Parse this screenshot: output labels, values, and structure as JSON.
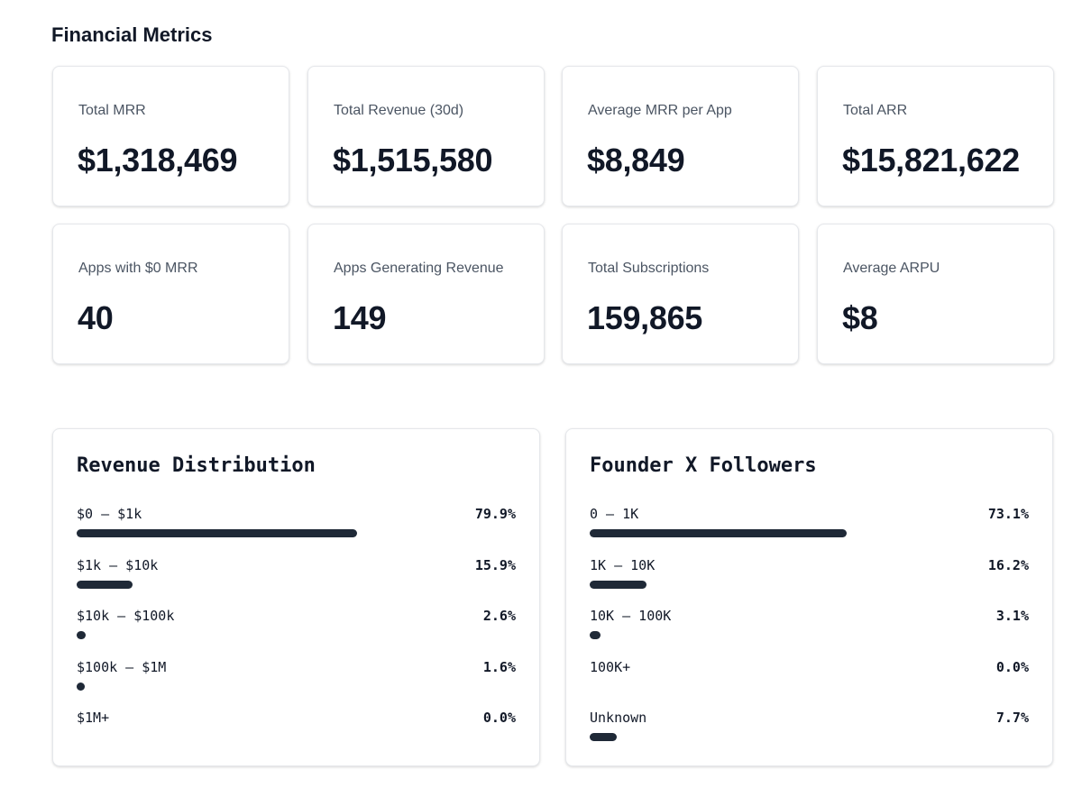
{
  "page": {
    "title": "Financial Metrics"
  },
  "metrics": [
    {
      "label": "Total MRR",
      "value": "$1,318,469"
    },
    {
      "label": "Total Revenue (30d)",
      "value": "$1,515,580"
    },
    {
      "label": "Average MRR per App",
      "value": "$8,849"
    },
    {
      "label": "Total ARR",
      "value": "$15,821,622"
    },
    {
      "label": "Apps with $0 MRR",
      "value": "40"
    },
    {
      "label": "Apps Generating Revenue",
      "value": "149"
    },
    {
      "label": "Total Subscriptions",
      "value": "159,865"
    },
    {
      "label": "Average ARPU",
      "value": "$8"
    }
  ],
  "revenue_distribution": {
    "title": "Revenue Distribution",
    "rows": [
      {
        "label": "$0 – $1k",
        "pct_text": "79.9%",
        "pct": 79.9
      },
      {
        "label": "$1k – $10k",
        "pct_text": "15.9%",
        "pct": 15.9
      },
      {
        "label": "$10k – $100k",
        "pct_text": "2.6%",
        "pct": 2.6
      },
      {
        "label": "$100k – $1M",
        "pct_text": "1.6%",
        "pct": 1.6
      },
      {
        "label": "$1M+",
        "pct_text": "0.0%",
        "pct": 0.0
      }
    ]
  },
  "founder_followers": {
    "title": "Founder X Followers",
    "rows": [
      {
        "label": "0 – 1K",
        "pct_text": "73.1%",
        "pct": 73.1
      },
      {
        "label": "1K – 10K",
        "pct_text": "16.2%",
        "pct": 16.2
      },
      {
        "label": "10K – 100K",
        "pct_text": "3.1%",
        "pct": 3.1
      },
      {
        "label": "100K+",
        "pct_text": "0.0%",
        "pct": 0.0
      },
      {
        "label": "Unknown",
        "pct_text": "7.7%",
        "pct": 7.7
      }
    ]
  },
  "colors": {
    "bar": "#1f2937",
    "text": "#111827",
    "muted": "#4b5563",
    "border": "#e5e7eb"
  }
}
